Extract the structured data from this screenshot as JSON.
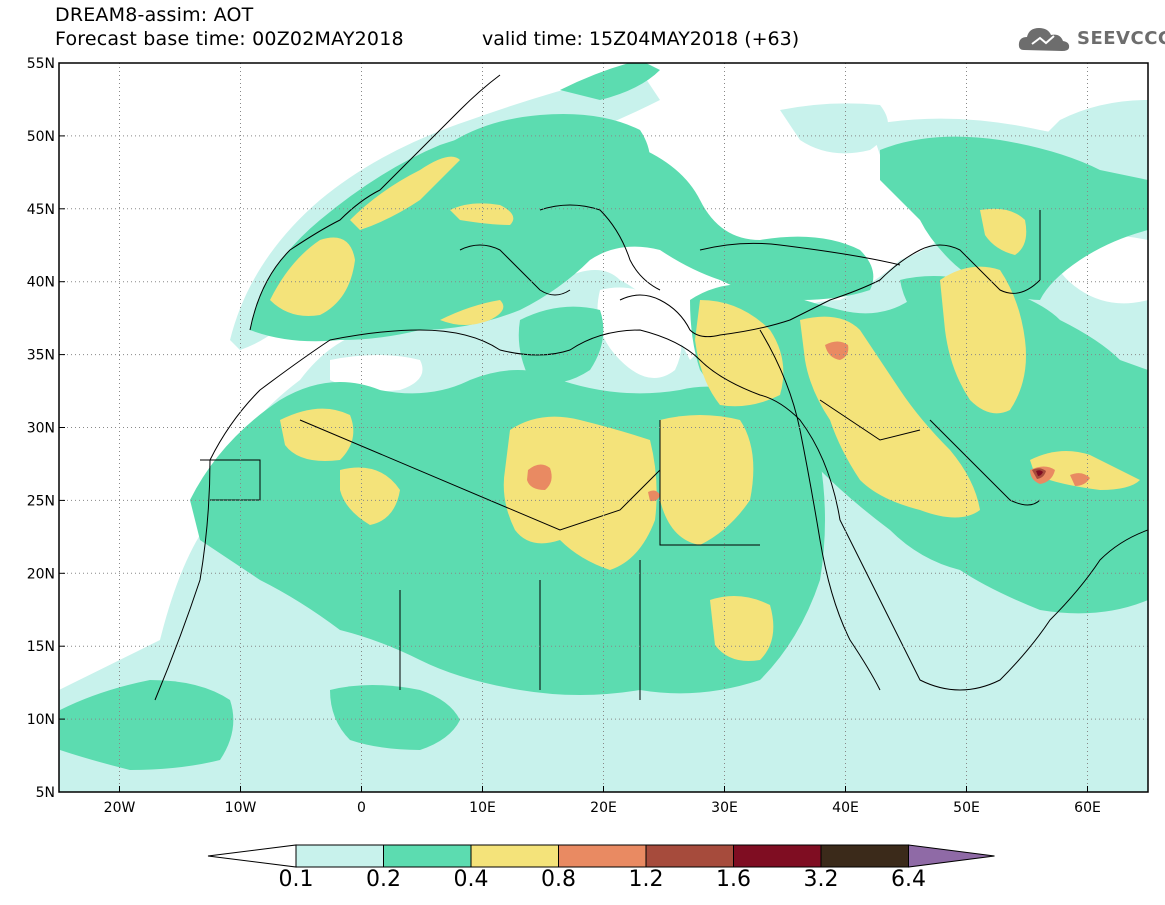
{
  "header": {
    "title": "DREAM8-assim: AOT",
    "base_time": "Forecast base time: 00Z02MAY2018",
    "valid_time": "valid time: 15Z04MAY2018 (+63)"
  },
  "logo": {
    "text": "SEEVCCC",
    "icon": "cloud-icon"
  },
  "map": {
    "lon_labels": [
      "20W",
      "10W",
      "0",
      "10E",
      "20E",
      "30E",
      "40E",
      "50E",
      "60E"
    ],
    "lat_labels": [
      "55N",
      "50N",
      "45N",
      "40N",
      "35N",
      "30N",
      "25N",
      "20N",
      "15N",
      "10N",
      "5N"
    ],
    "lon_range": [
      -25,
      65
    ],
    "lat_range": [
      5,
      55
    ],
    "grid": "dotted"
  },
  "colorbar": {
    "labels": [
      "0.1",
      "0.2",
      "0.4",
      "0.8",
      "1.2",
      "1.6",
      "3.2",
      "6.4"
    ],
    "colors": [
      "#ffffff",
      "#c8f2ec",
      "#5cdcb0",
      "#f4e37a",
      "#e98a62",
      "#a64b3c",
      "#7f0d22",
      "#3b2a1a",
      "#8f6aa6"
    ]
  }
}
